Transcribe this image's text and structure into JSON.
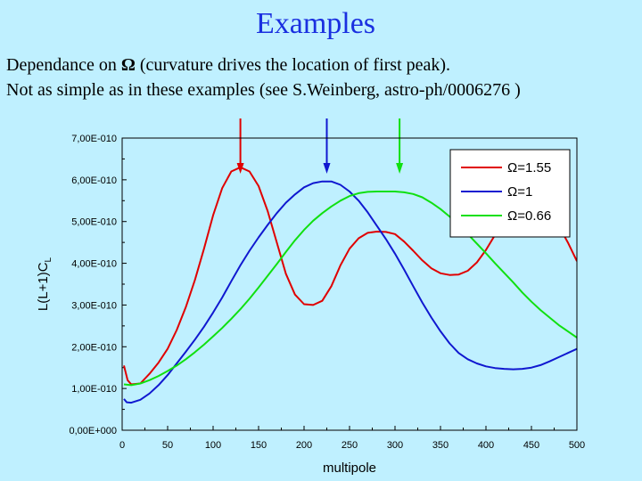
{
  "slide": {
    "title": "Examples",
    "line1_pre": "Dependance on ",
    "line1_post": " (curvature drives the location of first peak).",
    "omega_symbol": "Ω",
    "line2": "Not as simple as in these examples (see S.Weinberg, astro-ph/0006276 )"
  },
  "chart_data": {
    "type": "line",
    "xlabel": "multipole",
    "ylabel": "L(L+1)C",
    "ylabel_sub": "L",
    "xlim": [
      0,
      500
    ],
    "ylim": [
      0,
      7e-10
    ],
    "xticks": [
      "0",
      "50",
      "100",
      "150",
      "200",
      "250",
      "300",
      "350",
      "400",
      "450",
      "500"
    ],
    "yticks": [
      "0,00E+000",
      "1,00E-010",
      "2,00E-010",
      "3,00E-010",
      "4,00E-010",
      "5,00E-010",
      "6,00E-010",
      "7,00E-010"
    ],
    "legend_position": "top-right",
    "series": [
      {
        "name": "Ω=1.55",
        "color": "#e00000",
        "peak_arrow_x": 130,
        "points": [
          [
            2,
            1.55e-10
          ],
          [
            6,
            1.2e-10
          ],
          [
            10,
            1.1e-10
          ],
          [
            20,
            1.12e-10
          ],
          [
            30,
            1.35e-10
          ],
          [
            40,
            1.62e-10
          ],
          [
            50,
            1.95e-10
          ],
          [
            60,
            2.4e-10
          ],
          [
            70,
            2.95e-10
          ],
          [
            80,
            3.6e-10
          ],
          [
            90,
            4.35e-10
          ],
          [
            100,
            5.15e-10
          ],
          [
            110,
            5.8e-10
          ],
          [
            120,
            6.2e-10
          ],
          [
            130,
            6.3e-10
          ],
          [
            140,
            6.2e-10
          ],
          [
            150,
            5.85e-10
          ],
          [
            160,
            5.25e-10
          ],
          [
            170,
            4.5e-10
          ],
          [
            180,
            3.75e-10
          ],
          [
            190,
            3.25e-10
          ],
          [
            200,
            3.02e-10
          ],
          [
            210,
            3e-10
          ],
          [
            220,
            3.1e-10
          ],
          [
            230,
            3.45e-10
          ],
          [
            240,
            3.95e-10
          ],
          [
            250,
            4.35e-10
          ],
          [
            260,
            4.6e-10
          ],
          [
            270,
            4.73e-10
          ],
          [
            280,
            4.76e-10
          ],
          [
            290,
            4.75e-10
          ],
          [
            300,
            4.7e-10
          ],
          [
            310,
            4.52e-10
          ],
          [
            320,
            4.3e-10
          ],
          [
            330,
            4.07e-10
          ],
          [
            340,
            3.88e-10
          ],
          [
            350,
            3.76e-10
          ],
          [
            360,
            3.72e-10
          ],
          [
            370,
            3.73e-10
          ],
          [
            380,
            3.82e-10
          ],
          [
            390,
            4.02e-10
          ],
          [
            400,
            4.32e-10
          ],
          [
            410,
            4.68e-10
          ],
          [
            420,
            5.06e-10
          ],
          [
            430,
            5.35e-10
          ],
          [
            440,
            5.53e-10
          ],
          [
            450,
            5.6e-10
          ],
          [
            460,
            5.52e-10
          ],
          [
            470,
            5.28e-10
          ],
          [
            480,
            4.9e-10
          ],
          [
            490,
            4.5e-10
          ],
          [
            500,
            4.05e-10
          ]
        ]
      },
      {
        "name": "Ω=1",
        "color": "#1018d0",
        "peak_arrow_x": 225,
        "points": [
          [
            2,
            7.5e-11
          ],
          [
            5,
            6.7e-11
          ],
          [
            10,
            6.6e-11
          ],
          [
            20,
            7.3e-11
          ],
          [
            30,
            8.8e-11
          ],
          [
            40,
            1.08e-10
          ],
          [
            50,
            1.32e-10
          ],
          [
            60,
            1.6e-10
          ],
          [
            70,
            1.88e-10
          ],
          [
            80,
            2.17e-10
          ],
          [
            90,
            2.48e-10
          ],
          [
            100,
            2.82e-10
          ],
          [
            110,
            3.18e-10
          ],
          [
            120,
            3.57e-10
          ],
          [
            130,
            3.95e-10
          ],
          [
            140,
            4.3e-10
          ],
          [
            150,
            4.62e-10
          ],
          [
            160,
            4.92e-10
          ],
          [
            170,
            5.2e-10
          ],
          [
            180,
            5.45e-10
          ],
          [
            190,
            5.65e-10
          ],
          [
            200,
            5.82e-10
          ],
          [
            210,
            5.92e-10
          ],
          [
            220,
            5.96e-10
          ],
          [
            230,
            5.96e-10
          ],
          [
            240,
            5.88e-10
          ],
          [
            250,
            5.72e-10
          ],
          [
            260,
            5.5e-10
          ],
          [
            270,
            5.22e-10
          ],
          [
            280,
            4.9e-10
          ],
          [
            290,
            4.58e-10
          ],
          [
            300,
            4.23e-10
          ],
          [
            310,
            3.85e-10
          ],
          [
            320,
            3.45e-10
          ],
          [
            330,
            3.06e-10
          ],
          [
            340,
            2.7e-10
          ],
          [
            350,
            2.37e-10
          ],
          [
            360,
            2.08e-10
          ],
          [
            370,
            1.85e-10
          ],
          [
            380,
            1.7e-10
          ],
          [
            390,
            1.6e-10
          ],
          [
            400,
            1.53e-10
          ],
          [
            410,
            1.49e-10
          ],
          [
            420,
            1.47e-10
          ],
          [
            430,
            1.46e-10
          ],
          [
            440,
            1.47e-10
          ],
          [
            450,
            1.5e-10
          ],
          [
            460,
            1.56e-10
          ],
          [
            470,
            1.65e-10
          ],
          [
            480,
            1.75e-10
          ],
          [
            490,
            1.85e-10
          ],
          [
            500,
            1.95e-10
          ]
        ]
      },
      {
        "name": "Ω=0.66",
        "color": "#10e010",
        "peak_arrow_x": 305,
        "points": [
          [
            2,
            1.1e-10
          ],
          [
            10,
            1.08e-10
          ],
          [
            20,
            1.12e-10
          ],
          [
            30,
            1.2e-10
          ],
          [
            40,
            1.3e-10
          ],
          [
            50,
            1.42e-10
          ],
          [
            60,
            1.55e-10
          ],
          [
            70,
            1.7e-10
          ],
          [
            80,
            1.87e-10
          ],
          [
            90,
            2.05e-10
          ],
          [
            100,
            2.25e-10
          ],
          [
            110,
            2.45e-10
          ],
          [
            120,
            2.67e-10
          ],
          [
            130,
            2.9e-10
          ],
          [
            140,
            3.15e-10
          ],
          [
            150,
            3.42e-10
          ],
          [
            160,
            3.7e-10
          ],
          [
            170,
            3.98e-10
          ],
          [
            180,
            4.27e-10
          ],
          [
            190,
            4.55e-10
          ],
          [
            200,
            4.8e-10
          ],
          [
            210,
            5.02e-10
          ],
          [
            220,
            5.2e-10
          ],
          [
            230,
            5.36e-10
          ],
          [
            240,
            5.5e-10
          ],
          [
            250,
            5.61e-10
          ],
          [
            260,
            5.68e-10
          ],
          [
            270,
            5.71e-10
          ],
          [
            280,
            5.72e-10
          ],
          [
            290,
            5.72e-10
          ],
          [
            300,
            5.72e-10
          ],
          [
            310,
            5.7e-10
          ],
          [
            320,
            5.66e-10
          ],
          [
            330,
            5.58e-10
          ],
          [
            340,
            5.45e-10
          ],
          [
            350,
            5.3e-10
          ],
          [
            360,
            5.12e-10
          ],
          [
            370,
            4.92e-10
          ],
          [
            380,
            4.7e-10
          ],
          [
            390,
            4.47e-10
          ],
          [
            400,
            4.24e-10
          ],
          [
            410,
            4e-10
          ],
          [
            420,
            3.77e-10
          ],
          [
            430,
            3.54e-10
          ],
          [
            440,
            3.3e-10
          ],
          [
            450,
            3.08e-10
          ],
          [
            460,
            2.88e-10
          ],
          [
            470,
            2.7e-10
          ],
          [
            480,
            2.52e-10
          ],
          [
            490,
            2.37e-10
          ],
          [
            500,
            2.22e-10
          ]
        ]
      }
    ]
  }
}
